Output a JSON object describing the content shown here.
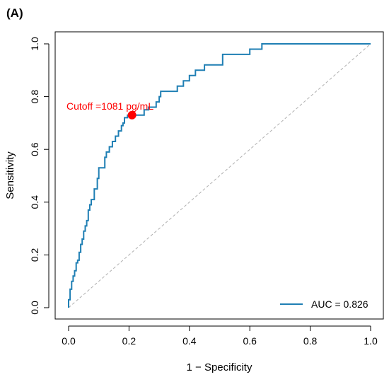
{
  "chart_data": {
    "type": "line",
    "panel_label": "(A)",
    "xlabel": "1 − Specificity",
    "ylabel": "Sensitivity",
    "xlim": [
      0,
      1
    ],
    "ylim": [
      0,
      1
    ],
    "xticks": [
      "0.0",
      "0.2",
      "0.4",
      "0.6",
      "0.8",
      "1.0"
    ],
    "yticks": [
      "0.0",
      "0.2",
      "0.4",
      "0.6",
      "0.8",
      "1.0"
    ],
    "grid": false,
    "legend_position": "bottom-right",
    "series": [
      {
        "name": "AUC = 0.826",
        "color": "#1f7fb4",
        "x": [
          0,
          0,
          0.005,
          0.005,
          0.01,
          0.01,
          0.015,
          0.015,
          0.02,
          0.02,
          0.025,
          0.025,
          0.03,
          0.03,
          0.035,
          0.035,
          0.04,
          0.04,
          0.045,
          0.045,
          0.05,
          0.05,
          0.055,
          0.055,
          0.06,
          0.06,
          0.065,
          0.065,
          0.07,
          0.07,
          0.075,
          0.075,
          0.085,
          0.085,
          0.095,
          0.095,
          0.1,
          0.1,
          0.12,
          0.12,
          0.125,
          0.125,
          0.135,
          0.135,
          0.145,
          0.145,
          0.155,
          0.155,
          0.165,
          0.165,
          0.175,
          0.175,
          0.18,
          0.18,
          0.185,
          0.185,
          0.195,
          0.195,
          0.21,
          0.21,
          0.215,
          0.215,
          0.225,
          0.225,
          0.25,
          0.25,
          0.265,
          0.265,
          0.29,
          0.29,
          0.3,
          0.3,
          0.305,
          0.305,
          0.31,
          0.31,
          0.36,
          0.36,
          0.38,
          0.38,
          0.4,
          0.4,
          0.42,
          0.42,
          0.45,
          0.45,
          0.51,
          0.51,
          0.6,
          0.6,
          0.64,
          0.64,
          1.0
        ],
        "y": [
          0,
          0.03,
          0.03,
          0.07,
          0.07,
          0.1,
          0.1,
          0.12,
          0.12,
          0.14,
          0.14,
          0.17,
          0.17,
          0.18,
          0.18,
          0.21,
          0.21,
          0.24,
          0.24,
          0.26,
          0.26,
          0.29,
          0.29,
          0.31,
          0.31,
          0.33,
          0.33,
          0.37,
          0.37,
          0.39,
          0.39,
          0.41,
          0.41,
          0.45,
          0.45,
          0.49,
          0.49,
          0.53,
          0.53,
          0.57,
          0.57,
          0.59,
          0.59,
          0.61,
          0.61,
          0.63,
          0.63,
          0.65,
          0.65,
          0.67,
          0.67,
          0.69,
          0.69,
          0.7,
          0.7,
          0.72,
          0.72,
          0.73,
          0.73,
          0.73,
          0.73,
          0.73,
          0.73,
          0.73,
          0.73,
          0.75,
          0.75,
          0.76,
          0.76,
          0.78,
          0.78,
          0.8,
          0.8,
          0.82,
          0.82,
          0.82,
          0.82,
          0.84,
          0.84,
          0.86,
          0.86,
          0.88,
          0.88,
          0.9,
          0.9,
          0.92,
          0.92,
          0.96,
          0.96,
          0.98,
          0.98,
          1.0,
          1.0
        ]
      }
    ],
    "reference_line": {
      "x": [
        0,
        1
      ],
      "y": [
        0,
        1
      ],
      "color": "#b0b0b0"
    },
    "cutoff_point": {
      "x": 0.21,
      "y": 0.73,
      "label": "Cutoff =1081 pg/mL",
      "color": "#ff0000"
    },
    "legend": {
      "label": "AUC = 0.826"
    }
  }
}
